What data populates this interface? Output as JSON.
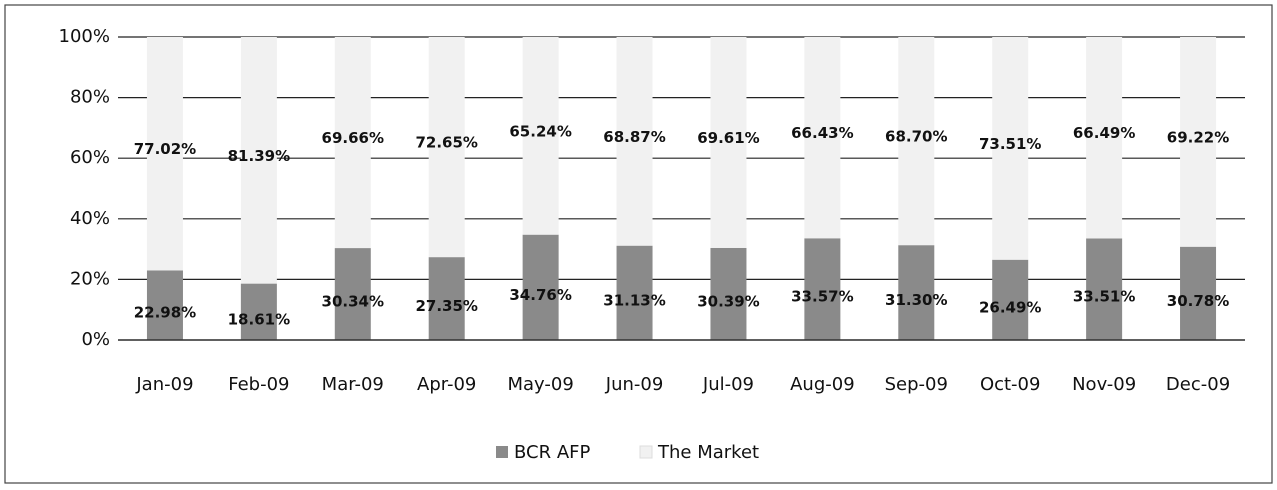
{
  "chart_data": {
    "type": "stacked_bar",
    "categories": [
      "Jan-09",
      "Feb-09",
      "Mar-09",
      "Apr-09",
      "May-09",
      "Jun-09",
      "Jul-09",
      "Aug-09",
      "Sep-09",
      "Oct-09",
      "Nov-09",
      "Dec-09"
    ],
    "series": [
      {
        "name": "BCR AFP",
        "color": "#8a8a8a",
        "values": [
          22.98,
          18.61,
          30.34,
          27.35,
          34.76,
          31.13,
          30.39,
          33.57,
          31.3,
          26.49,
          33.51,
          30.78
        ],
        "value_labels": [
          "22.98%",
          "18.61%",
          "30.34%",
          "27.35%",
          "34.76%",
          "31.13%",
          "30.39%",
          "33.57%",
          "31.30%",
          "26.49%",
          "33.51%",
          "30.78%"
        ]
      },
      {
        "name": "The Market",
        "color": "#f1f1f1",
        "values": [
          77.02,
          81.39,
          69.66,
          72.65,
          65.24,
          68.87,
          69.61,
          66.43,
          68.7,
          73.51,
          66.49,
          69.22
        ],
        "value_labels": [
          "77.02%",
          "81.39%",
          "69.66%",
          "72.65%",
          "65.24%",
          "68.87%",
          "69.61%",
          "66.43%",
          "68.70%",
          "73.51%",
          "66.49%",
          "69.22%"
        ]
      }
    ],
    "ylim": [
      0,
      100
    ],
    "yticks": [
      {
        "value": 0,
        "label": "0%"
      },
      {
        "value": 20,
        "label": "20%"
      },
      {
        "value": 40,
        "label": "40%"
      },
      {
        "value": 60,
        "label": "60%"
      },
      {
        "value": 80,
        "label": "80%"
      },
      {
        "value": 100,
        "label": "100%"
      }
    ],
    "grid": true,
    "legend": "bottom"
  }
}
